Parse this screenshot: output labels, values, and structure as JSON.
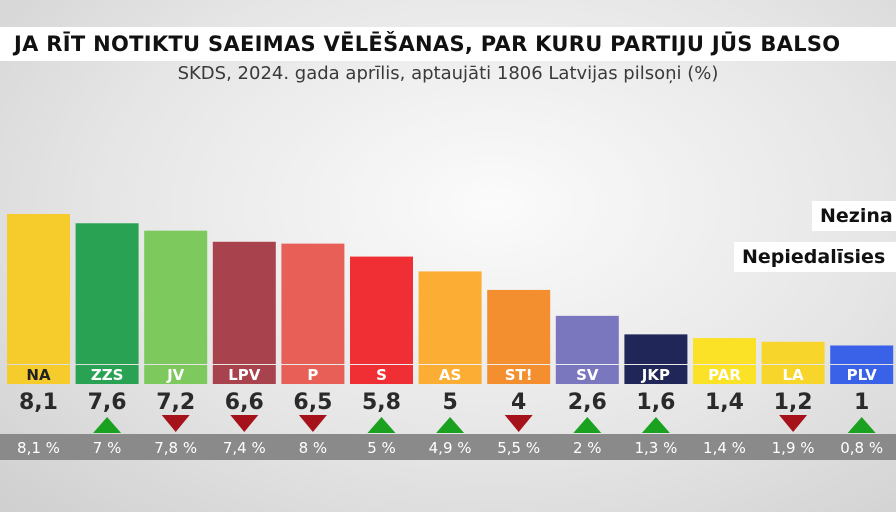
{
  "header": {
    "title": "JA RĪT NOTIKTU SAEIMAS VĒLĒŠANAS, PAR KURU PARTIJU JŪS BALSO",
    "subtitle": "SKDS, 2024. gada aprīlis, aptaujāti 1806 Latvijas pilsoņi (%)"
  },
  "side_labels": [
    "Nezina",
    "Nepiedalīsies"
  ],
  "chart_data": {
    "type": "bar",
    "title": "JA RĪT NOTIKTU SAEIMAS VĒLĒŠANAS, PAR KURU PARTIJU JŪS BALSO",
    "subtitle": "SKDS, 2024. gada aprīlis, aptaujāti 1806 Latvijas pilsoņi (%)",
    "categories": [
      "NA",
      "ZZS",
      "JV",
      "LPV",
      "P",
      "S",
      "AS",
      "ST!",
      "SV",
      "JKP",
      "PAR",
      "LA",
      "PLV"
    ],
    "values": [
      8.1,
      7.6,
      7.2,
      6.6,
      6.5,
      5.8,
      5,
      4,
      2.6,
      1.6,
      1.4,
      1.2,
      1
    ],
    "value_labels": [
      "8,1",
      "7,6",
      "7,2",
      "6,6",
      "6,5",
      "5,8",
      "5",
      "4",
      "2,6",
      "1,6",
      "1,4",
      "1,2",
      "1"
    ],
    "previous_labels": [
      "8,1 %",
      "7 %",
      "7,8 %",
      "7,4 %",
      "8 %",
      "5 %",
      "4,9 %",
      "5,5 %",
      "2 %",
      "1,3 %",
      "1,4 %",
      "1,9 %",
      "0,8 %"
    ],
    "trend": [
      "none",
      "up",
      "down",
      "down",
      "down",
      "up",
      "up",
      "down",
      "up",
      "up",
      "none",
      "down",
      "up"
    ],
    "colors": [
      "#f6cc2c",
      "#2aa253",
      "#7dc95e",
      "#a8434d",
      "#e85f57",
      "#ef2f33",
      "#fbae33",
      "#f38f2e",
      "#7b77bf",
      "#202657",
      "#fbe227",
      "#f8d52a",
      "#3a62e8"
    ],
    "label_text_colors": [
      "#222222",
      "#ffffff",
      "#ffffff",
      "#ffffff",
      "#ffffff",
      "#ffffff",
      "#ffffff",
      "#ffffff",
      "#ffffff",
      "#ffffff",
      "#ffffff",
      "#ffffff",
      "#ffffff"
    ],
    "trend_colors": {
      "up": "#1aa11f",
      "down": "#a5121a"
    },
    "ylim": [
      0,
      8.5
    ]
  }
}
